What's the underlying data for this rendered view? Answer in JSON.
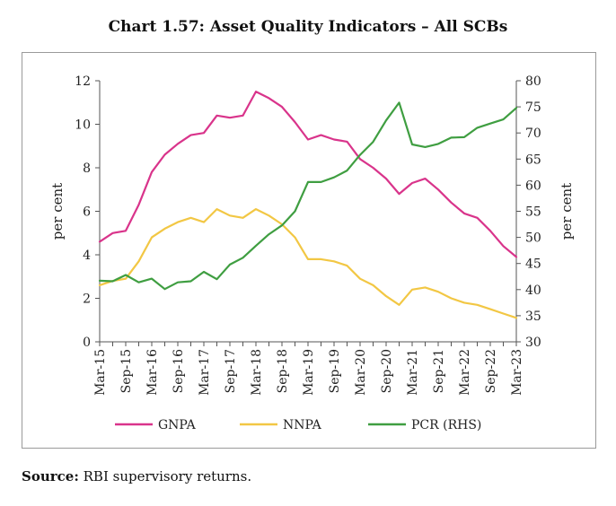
{
  "chart_data": {
    "type": "line",
    "title": "Chart 1.57: Asset Quality Indicators – All SCBs",
    "ylabel": "per cent",
    "ylabel_right": "per cent",
    "ylim": [
      0,
      12
    ],
    "yticks": [
      "0",
      "2",
      "4",
      "6",
      "8",
      "10",
      "12"
    ],
    "ylim_right": [
      30,
      80
    ],
    "yticks_right": [
      "30",
      "35",
      "40",
      "45",
      "50",
      "55",
      "60",
      "65",
      "70",
      "75",
      "80"
    ],
    "tick_labels": [
      "Mar-15",
      "Sep-15",
      "Mar-16",
      "Sep-16",
      "Mar-17",
      "Sep-17",
      "Mar-18",
      "Sep-18",
      "Mar-19",
      "Sep-19",
      "Mar-20",
      "Sep-20",
      "Mar-21",
      "Sep-21",
      "Mar-22",
      "Sep-22",
      "Mar-23"
    ],
    "x_count": 33,
    "series": [
      {
        "name": "GNPA",
        "axis": "left",
        "color": "#d9348b",
        "values": [
          4.6,
          5.0,
          5.1,
          6.3,
          7.8,
          8.6,
          9.1,
          9.5,
          9.6,
          10.4,
          10.3,
          10.4,
          11.5,
          11.2,
          10.8,
          10.1,
          9.3,
          9.5,
          9.3,
          9.2,
          8.4,
          8.0,
          7.5,
          6.8,
          7.3,
          7.5,
          7.0,
          6.4,
          5.9,
          5.7,
          5.1,
          4.4,
          3.9
        ]
      },
      {
        "name": "NNPA",
        "axis": "left",
        "color": "#f2c744",
        "values": [
          2.6,
          2.8,
          2.9,
          3.7,
          4.8,
          5.2,
          5.5,
          5.7,
          5.5,
          6.1,
          5.8,
          5.7,
          6.1,
          5.8,
          5.4,
          4.8,
          3.8,
          3.8,
          3.7,
          3.5,
          2.9,
          2.6,
          2.1,
          1.7,
          2.4,
          2.5,
          2.3,
          2.0,
          1.8,
          1.7,
          1.5,
          1.3,
          1.1
        ]
      },
      {
        "name": "PCR (RHS)",
        "axis": "right",
        "color": "#3f9e41",
        "values": [
          41.7,
          41.6,
          42.8,
          41.4,
          42.1,
          40.1,
          41.4,
          41.6,
          43.4,
          42.0,
          44.8,
          46.1,
          48.4,
          50.6,
          52.3,
          55.0,
          60.6,
          60.6,
          61.5,
          62.8,
          65.8,
          68.3,
          72.4,
          75.8,
          67.8,
          67.3,
          67.9,
          69.1,
          69.2,
          71.0,
          71.8,
          72.6,
          74.8
        ]
      }
    ]
  },
  "source": {
    "label": "Source:",
    "text": " RBI supervisory returns."
  }
}
